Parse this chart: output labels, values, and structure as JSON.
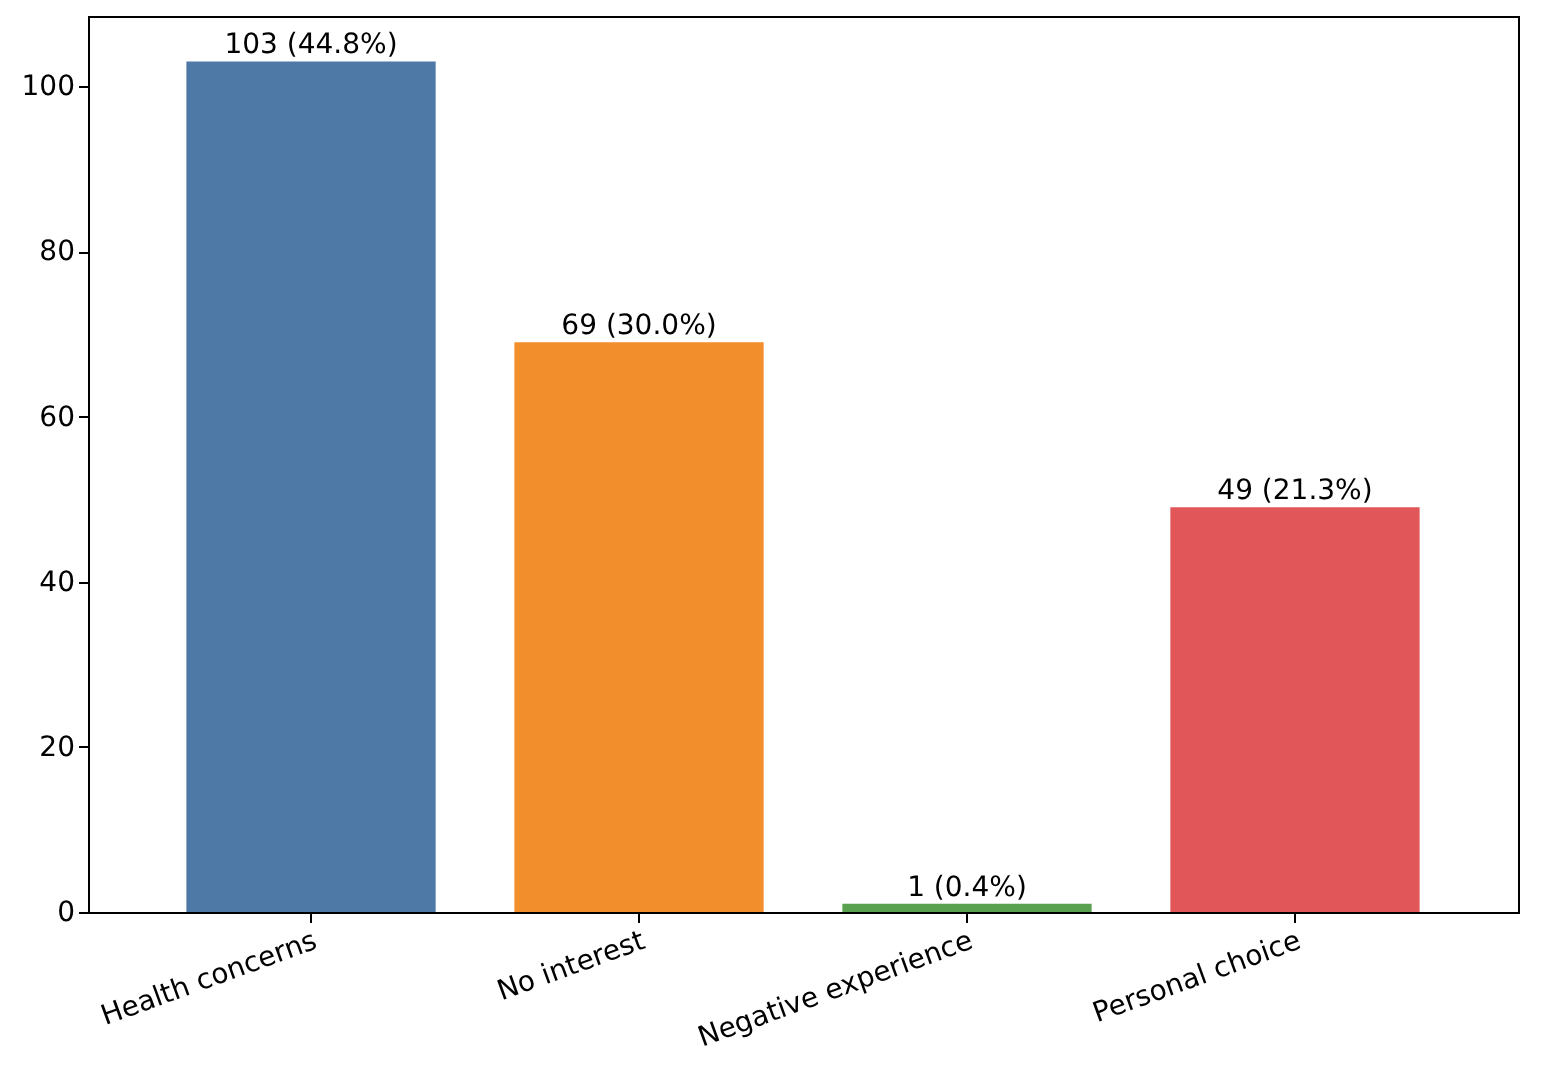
{
  "chart_data": {
    "type": "bar",
    "categories": [
      "Health concerns",
      "No interest",
      "Negative experience",
      "Personal choice"
    ],
    "values": [
      103,
      69,
      1,
      49
    ],
    "colors": [
      "#4e79a7",
      "#f28e2b",
      "#59a14f",
      "#e15759"
    ],
    "value_labels": [
      "103 (44.8%)",
      "69 (30.0%)",
      "1 (0.4%)",
      "49 (21.3%)"
    ],
    "ylim": [
      0,
      108.5
    ],
    "yticks": [
      0,
      20,
      40,
      60,
      80,
      100
    ],
    "grid": false,
    "legend": false
  }
}
